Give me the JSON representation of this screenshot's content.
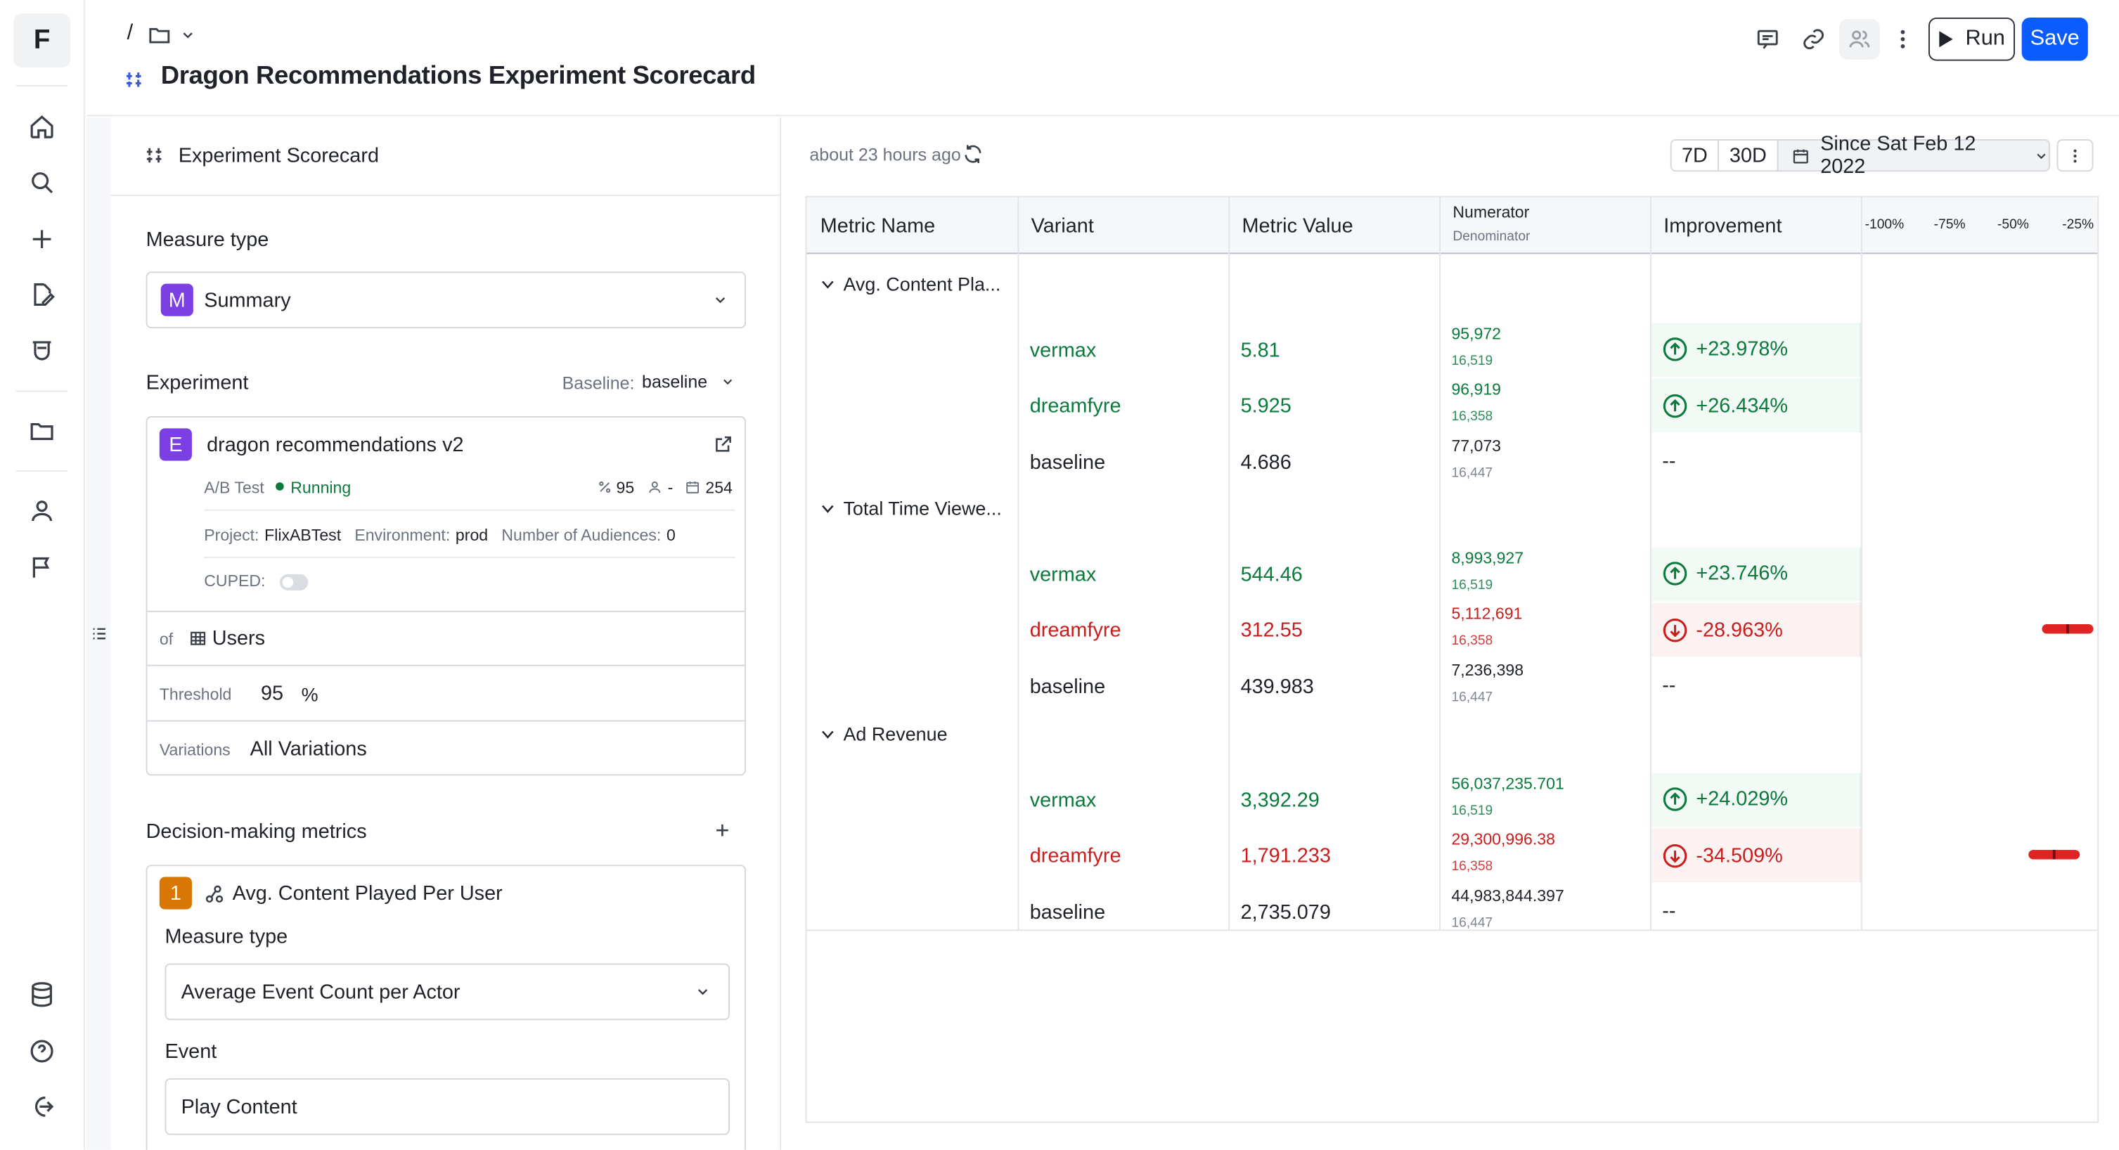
{
  "app": {
    "logo": "F"
  },
  "rail": {
    "icons": [
      "home-icon",
      "search-icon",
      "plus-icon",
      "edit-document-icon",
      "lab-flask-icon",
      "folder-icon",
      "user-icon",
      "flag-icon",
      "database-icon",
      "help-icon",
      "logout-icon"
    ]
  },
  "header": {
    "breadcrumb_sep": "/",
    "title": "Dragon Recommendations Experiment Scorecard",
    "run_label": "Run",
    "save_label": "Save"
  },
  "left": {
    "panel_title": "Experiment Scorecard",
    "measure_type_label": "Measure type",
    "measure_badge": "M",
    "measure_value": "Summary",
    "experiment_label": "Experiment",
    "baseline_label": "Baseline:",
    "baseline_value": "baseline",
    "experiment": {
      "badge": "E",
      "name": "dragon recommendations v2",
      "type": "A/B Test",
      "status": "Running",
      "pct": "95",
      "audience": "-",
      "days": "254",
      "project_label": "Project:",
      "project": "FlixABTest",
      "env_label": "Environment:",
      "env": "prod",
      "aud_label": "Number of Audiences:",
      "aud": "0",
      "cuped_label": "CUPED:"
    },
    "of_label": "of",
    "of_value": "Users",
    "threshold_label": "Threshold",
    "threshold_value": "95",
    "threshold_unit": "%",
    "variations_label": "Variations",
    "variations_value": "All Variations",
    "decision_label": "Decision-making metrics",
    "metric_card": {
      "badge": "1",
      "name": "Avg. Content Played Per User",
      "measure_type_label": "Measure type",
      "measure_type_value": "Average Event Count per Actor",
      "event_label": "Event",
      "event_value": "Play Content"
    }
  },
  "right": {
    "updated": "about 23 hours ago",
    "range_7d": "7D",
    "range_30d": "30D",
    "range_since": "Since Sat Feb 12 2022",
    "columns": {
      "metric": "Metric Name",
      "variant": "Variant",
      "value": "Metric Value",
      "numerator": "Numerator",
      "denominator": "Denominator",
      "improvement": "Improvement"
    },
    "axis_ticks": [
      "-100%",
      "-75%",
      "-50%",
      "-25%"
    ],
    "groups": [
      {
        "name": "Avg. Content Pla...",
        "rows": [
          {
            "variant": "vermax",
            "value": "5.81",
            "num": "95,972",
            "den": "16,519",
            "imp": "+23.978%",
            "dir": "up",
            "imp_pct": 23.978
          },
          {
            "variant": "dreamfyre",
            "value": "5.925",
            "num": "96,919",
            "den": "16,358",
            "imp": "+26.434%",
            "dir": "up",
            "imp_pct": 26.434
          },
          {
            "variant": "baseline",
            "value": "4.686",
            "num": "77,073",
            "den": "16,447",
            "imp": "--",
            "dir": "none"
          }
        ]
      },
      {
        "name": "Total Time Viewe...",
        "rows": [
          {
            "variant": "vermax",
            "value": "544.46",
            "num": "8,993,927",
            "den": "16,519",
            "imp": "+23.746%",
            "dir": "up",
            "imp_pct": 23.746
          },
          {
            "variant": "dreamfyre",
            "value": "312.55",
            "num": "5,112,691",
            "den": "16,358",
            "imp": "-28.963%",
            "dir": "down",
            "imp_pct": -28.963
          },
          {
            "variant": "baseline",
            "value": "439.983",
            "num": "7,236,398",
            "den": "16,447",
            "imp": "--",
            "dir": "none"
          }
        ]
      },
      {
        "name": "Ad Revenue",
        "rows": [
          {
            "variant": "vermax",
            "value": "3,392.29",
            "num": "56,037,235.701",
            "den": "16,519",
            "imp": "+24.029%",
            "dir": "up",
            "imp_pct": 24.029
          },
          {
            "variant": "dreamfyre",
            "value": "1,791.233",
            "num": "29,300,996.38",
            "den": "16,358",
            "imp": "-34.509%",
            "dir": "down",
            "imp_pct": -34.509
          },
          {
            "variant": "baseline",
            "value": "2,735.079",
            "num": "44,983,844.397",
            "den": "16,447",
            "imp": "--",
            "dir": "none"
          }
        ]
      }
    ]
  },
  "colors": {
    "primary": "#0a5cff",
    "positive": "#0c7a3c",
    "negative": "#c81e1e",
    "badge_purple": "#7b3fe4",
    "badge_orange": "#d97706"
  }
}
